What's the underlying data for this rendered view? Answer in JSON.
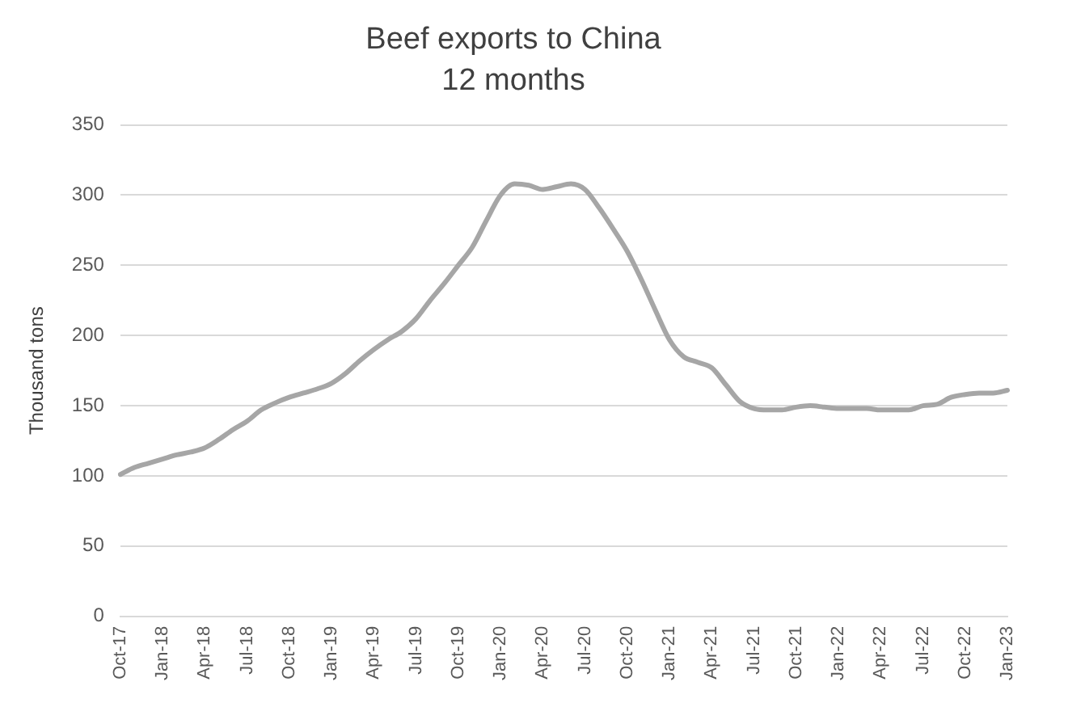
{
  "chart_data": {
    "type": "line",
    "title": "Beef exports to China",
    "subtitle": "12 months",
    "ylabel": "Thousand tons",
    "categories": [
      "Oct-17",
      null,
      null,
      "Jan-18",
      null,
      null,
      "Apr-18",
      null,
      null,
      "Jul-18",
      null,
      null,
      "Oct-18",
      null,
      null,
      "Jan-19",
      null,
      null,
      "Apr-19",
      null,
      null,
      "Jul-19",
      null,
      null,
      "Oct-19",
      null,
      null,
      "Jan-20",
      null,
      null,
      "Apr-20",
      null,
      null,
      "Jul-20",
      null,
      null,
      "Oct-20",
      null,
      null,
      "Jan-21",
      null,
      null,
      "Apr-21",
      null,
      null,
      "Jul-21",
      null,
      null,
      "Oct-21",
      null,
      null,
      "Jan-22",
      null,
      null,
      "Apr-22",
      null,
      null,
      "Jul-22",
      null,
      null,
      "Oct-22",
      null,
      null,
      "Jan-23"
    ],
    "series": [
      {
        "color": "#a6a6a6",
        "values": [
          101,
          106,
          109,
          112,
          115,
          117,
          120,
          126,
          133,
          139,
          147,
          152,
          156,
          159,
          162,
          166,
          173,
          182,
          190,
          197,
          203,
          212,
          225,
          237,
          250,
          263,
          282,
          300,
          308,
          307,
          304,
          306,
          308,
          304,
          291,
          276,
          260,
          240,
          218,
          197,
          185,
          181,
          177,
          165,
          153,
          148,
          147,
          147,
          149,
          150,
          149,
          148,
          148,
          148,
          147,
          147,
          147,
          150,
          151,
          156,
          158,
          159,
          159,
          161
        ]
      }
    ],
    "ylim": [
      0,
      350
    ],
    "yticks": [
      0,
      50,
      100,
      150,
      200,
      250,
      300,
      350
    ],
    "grid": "y",
    "legend": false,
    "marker": "none",
    "line_style": "solid"
  }
}
